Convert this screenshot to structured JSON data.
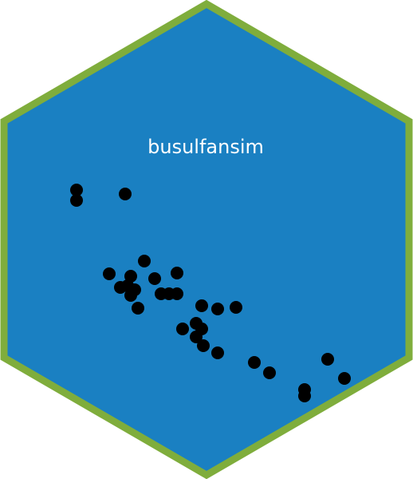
{
  "logo": {
    "title": "busulfansim",
    "colors": {
      "fill": "#1A80C2",
      "border": "#7FAD3C",
      "title": "#FFFFFF",
      "dot": "#000000"
    }
  }
}
